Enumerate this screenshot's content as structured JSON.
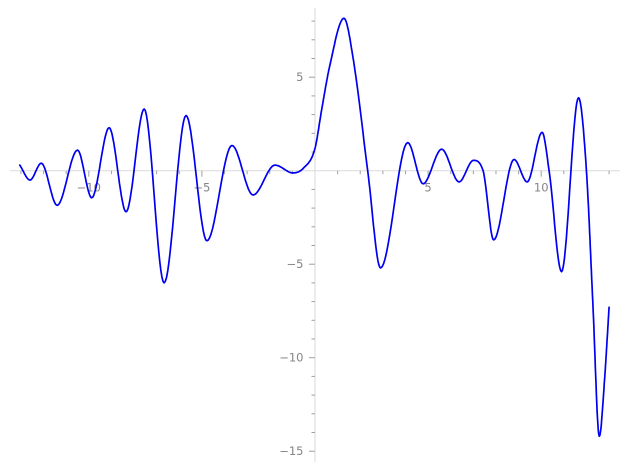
{
  "chart_data": {
    "type": "line",
    "title": "",
    "xlabel": "",
    "ylabel": "",
    "grid": false,
    "legend": "none",
    "axes_style": "axes-through-origin",
    "x_range": [
      -13,
      13
    ],
    "y_range": [
      -15,
      8
    ],
    "colors": {
      "curve": "#0000f0",
      "axis_line": "#dadada",
      "tick": "#a0a0a0",
      "tick_label": "#848484",
      "background": "#ffffff"
    },
    "x_axis": {
      "minor_tick_step": 1,
      "minor_tick_min": -13,
      "minor_tick_max": 13,
      "major_ticks": [
        {
          "value": -10,
          "label": "−10"
        },
        {
          "value": -5,
          "label": "−5"
        },
        {
          "value": 5,
          "label": "5"
        },
        {
          "value": 10,
          "label": "10"
        }
      ]
    },
    "y_axis": {
      "minor_tick_step": 1,
      "minor_tick_min": -15,
      "minor_tick_max": 8,
      "major_ticks": [
        {
          "value": 5,
          "label": "5"
        },
        {
          "value": -5,
          "label": "−5"
        },
        {
          "value": -10,
          "label": "−10"
        },
        {
          "value": -15,
          "label": "−15"
        }
      ]
    },
    "series": [
      {
        "name": "blue-oscillating-curve",
        "color": "#0000f0",
        "line_width": 1.7,
        "points": [
          [
            -13.05,
            0.3
          ],
          [
            -12.6,
            -0.5
          ],
          [
            -12.1,
            0.4
          ],
          [
            -11.4,
            -1.85
          ],
          [
            -10.5,
            1.1
          ],
          [
            -9.87,
            -1.45
          ],
          [
            -9.1,
            2.3
          ],
          [
            -8.35,
            -2.2
          ],
          [
            -7.55,
            3.3
          ],
          [
            -6.67,
            -6.0
          ],
          [
            -5.7,
            2.95
          ],
          [
            -4.78,
            -3.75
          ],
          [
            -3.67,
            1.35
          ],
          [
            -2.74,
            -1.3
          ],
          [
            -1.77,
            0.3
          ],
          [
            -0.97,
            -0.12
          ],
          [
            -0.5,
            0.15
          ],
          [
            0.0,
            1.2
          ],
          [
            0.3,
            3.3
          ],
          [
            0.65,
            5.6
          ],
          [
            1.28,
            8.15
          ],
          [
            1.7,
            5.9
          ],
          [
            2.33,
            0.0
          ],
          [
            2.9,
            -5.2
          ],
          [
            4.1,
            1.5
          ],
          [
            4.78,
            -0.7
          ],
          [
            5.6,
            1.15
          ],
          [
            6.37,
            -0.6
          ],
          [
            7.0,
            0.55
          ],
          [
            7.43,
            0.0
          ],
          [
            7.9,
            -3.7
          ],
          [
            8.8,
            0.6
          ],
          [
            9.38,
            -0.6
          ],
          [
            10.04,
            2.05
          ],
          [
            10.35,
            0.0
          ],
          [
            10.9,
            -5.4
          ],
          [
            11.65,
            3.9
          ],
          [
            12.0,
            0.0
          ],
          [
            12.28,
            -7.0
          ],
          [
            12.57,
            -14.2
          ],
          [
            12.8,
            -11.2
          ],
          [
            13.0,
            -7.3
          ]
        ]
      }
    ]
  }
}
